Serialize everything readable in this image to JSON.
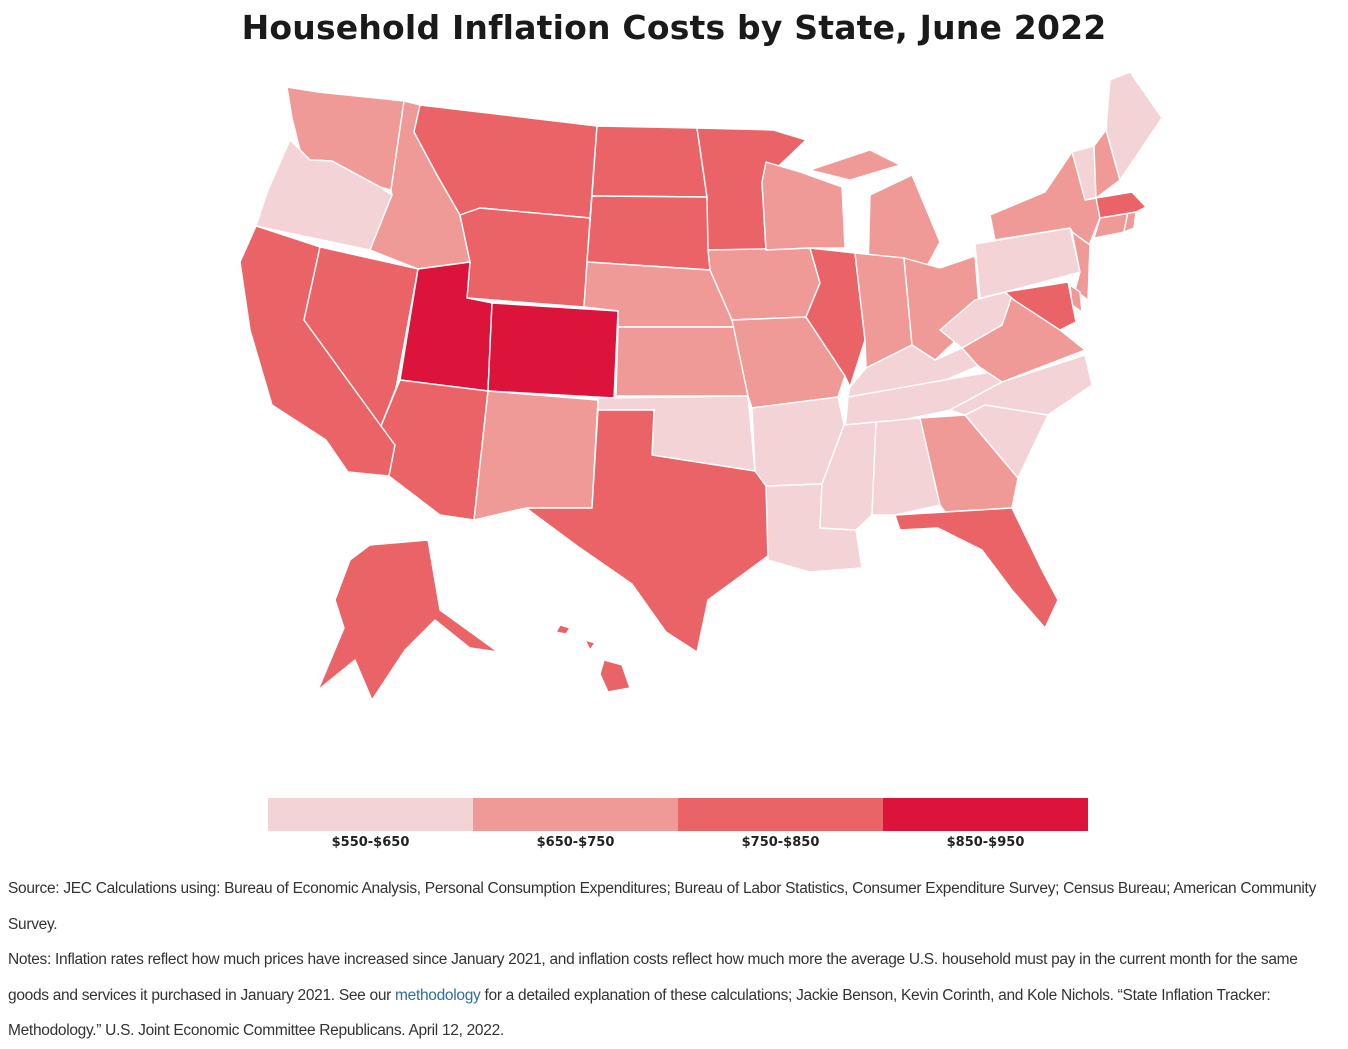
{
  "title": "Household Inflation Costs by State, June 2022",
  "legend": [
    {
      "label": "$550-$650",
      "color": "#f4d3d6"
    },
    {
      "label": "$650-$750",
      "color": "#f09a98"
    },
    {
      "label": "$750-$850",
      "color": "#ea6367"
    },
    {
      "label": "$850-$950",
      "color": "#dc143c"
    }
  ],
  "states": {
    "WA": 1,
    "OR": 0,
    "CA": 2,
    "NV": 2,
    "ID": 1,
    "MT": 2,
    "WY": 2,
    "UT": 3,
    "CO": 3,
    "AZ": 2,
    "NM": 1,
    "ND": 2,
    "SD": 2,
    "NE": 1,
    "KS": 1,
    "OK": 0,
    "TX": 2,
    "MN": 2,
    "IA": 1,
    "MO": 1,
    "AR": 0,
    "LA": 0,
    "WI": 1,
    "IL": 2,
    "MI": 1,
    "IN": 1,
    "OH": 1,
    "KY": 0,
    "TN": 0,
    "MS": 0,
    "AL": 0,
    "GA": 1,
    "FL": 2,
    "SC": 0,
    "NC": 0,
    "VA": 1,
    "WV": 0,
    "PA": 0,
    "NY": 1,
    "NJ": 1,
    "DE": 1,
    "MD": 2,
    "CT": 1,
    "RI": 1,
    "MA": 2,
    "VT": 0,
    "NH": 1,
    "ME": 0,
    "AK": 2,
    "HI": 2
  },
  "notes": {
    "source": "Source: JEC Calculations using: Bureau of Economic Analysis, Personal Consumption Expenditures; Bureau of Labor Statistics, Consumer Expenditure Survey; Census Bureau; American Community Survey.",
    "notes_before_link": "Notes: Inflation rates reflect how much prices have increased since January 2021, and inflation costs reflect how much more the average U.S. household must pay in the current month for the same goods and services it purchased in January 2021. See our ",
    "link_text": "methodology",
    "notes_after_link": " for a detailed explanation of these calculations; Jackie Benson, Kevin Corinth, and Kole Nichols. “State Inflation Tracker: Methodology.” U.S. Joint Economic Committee Republicans. April 12, 2022."
  }
}
